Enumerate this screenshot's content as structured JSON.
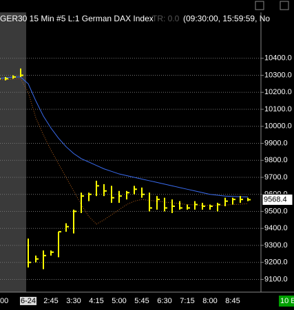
{
  "chart_data": {
    "type": "hlc",
    "title": "GER30  15 Min  #5  L:1  German DAX Index",
    "indicator": "TR: 0.0",
    "session": "(09:30:00, 15:59:59, No",
    "status": "10 E",
    "categories": [
      "00",
      null,
      null,
      null,
      "6-24",
      null,
      null,
      "2:45",
      null,
      null,
      "3:30",
      null,
      null,
      "4:15",
      null,
      null,
      "5:00",
      null,
      null,
      "5:45",
      null,
      null,
      "6:30",
      null,
      null,
      "7:15",
      null,
      null,
      "8:00",
      null,
      null,
      "8:45",
      null,
      null
    ],
    "high": [
      10290,
      10290,
      10300,
      10340,
      9340,
      9240,
      9270,
      9270,
      9380,
      9430,
      9510,
      9610,
      9610,
      9680,
      9660,
      9650,
      9620,
      9620,
      9650,
      9640,
      9610,
      9590,
      9580,
      9570,
      9560,
      9540,
      9560,
      9550,
      9540,
      9550,
      9580,
      9580,
      9590,
      9580
    ],
    "low": [
      10270,
      10270,
      10280,
      10290,
      9170,
      9200,
      9160,
      9240,
      9230,
      9380,
      9370,
      9490,
      9560,
      9590,
      9590,
      9550,
      9550,
      9570,
      9600,
      9580,
      9500,
      9510,
      9500,
      9490,
      9510,
      9510,
      9510,
      9510,
      9510,
      9500,
      9530,
      9540,
      9550,
      9560
    ],
    "close": [
      10280,
      10280,
      10290,
      10300,
      9200,
      9220,
      9240,
      9260,
      9380,
      9410,
      9500,
      9590,
      9600,
      9650,
      9620,
      9580,
      9590,
      9610,
      9630,
      9600,
      9520,
      9570,
      9520,
      9530,
      9520,
      9520,
      9540,
      9530,
      9530,
      9540,
      9560,
      9570,
      9570,
      9568.4
    ],
    "value_labels": {
      "33": "9568.4"
    },
    "color": "#ffff00",
    "series": [
      {
        "color": "#3a6cf0",
        "style": "solid",
        "values": [
          10280,
          10285,
          10290,
          10290,
          10250,
          10150,
          10060,
          9990,
          9930,
          9880,
          9840,
          9810,
          9790,
          9770,
          9750,
          9735,
          9720,
          9710,
          9700,
          9690,
          9680,
          9670,
          9660,
          9650,
          9640,
          9630,
          9620,
          9610,
          9600,
          9595,
          9590,
          9588,
          9586,
          9585
        ]
      },
      {
        "color": "#b8621b",
        "style": "dotted",
        "values": [
          10275,
          10275,
          10278,
          10280,
          10200,
          10050,
          9950,
          9860,
          9780,
          9700,
          9620,
          9540,
          9470,
          9425,
          9450,
          9480,
          9510,
          9540,
          9560,
          9570,
          9565,
          9560,
          9555,
          9550,
          9545,
          9540,
          9538,
          9535,
          9535,
          9535,
          9537,
          9540,
          9542,
          9545
        ]
      }
    ],
    "ylim": [
      9025,
      10670
    ],
    "yticks": [
      {
        "value": 9100,
        "label": "9100.0"
      },
      {
        "value": 9200,
        "label": "9200.0"
      },
      {
        "value": 9300,
        "label": "9300.0"
      },
      {
        "value": 9400,
        "label": "9400.0"
      },
      {
        "value": 9500,
        "label": "9500.0"
      },
      {
        "value": 9600,
        "label": "9600.0"
      },
      {
        "value": 9700,
        "label": "9700.0"
      },
      {
        "value": 9800,
        "label": "9800.0"
      },
      {
        "value": 9900,
        "label": "9900.0"
      },
      {
        "value": 10000,
        "label": "10000.0"
      },
      {
        "value": 10100,
        "label": "10100.0"
      },
      {
        "value": 10200,
        "label": "10200.0"
      },
      {
        "value": 10300,
        "label": "10300.0"
      },
      {
        "value": 10400,
        "label": "10400.0"
      }
    ],
    "grid": true
  }
}
